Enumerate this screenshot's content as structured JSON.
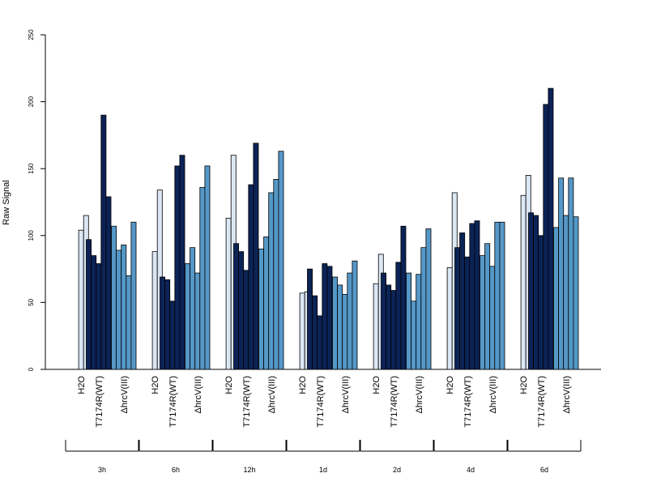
{
  "chart_data": {
    "type": "bar",
    "title": "",
    "xlabel": "",
    "ylabel": "Raw Signal",
    "ylim": [
      0,
      250
    ],
    "yticks": [
      0,
      50,
      100,
      150,
      200,
      250
    ],
    "grid": false,
    "legend": "none",
    "colors": {
      "H2O": "#dbe7f4",
      "T7174R(WT)": "#0c2356",
      "ΔhrcV(III)": "#5598c8",
      "stroke": "#000000",
      "axis": "#000000"
    },
    "treatments": [
      "H2O",
      "T7174R(WT)",
      "ΔhrcV(III)"
    ],
    "groups": [
      {
        "label": "3h",
        "bars": {
          "H2O": [
            null,
            104,
            115
          ],
          "T7174R(WT)": [
            97,
            85,
            79,
            190,
            129
          ],
          "ΔhrcV(III)": [
            107,
            89,
            93,
            70,
            110
          ]
        }
      },
      {
        "label": "6h",
        "bars": {
          "H2O": [
            null,
            88,
            134
          ],
          "T7174R(WT)": [
            69,
            67,
            51,
            152,
            160
          ],
          "ΔhrcV(III)": [
            79,
            91,
            72,
            136,
            152
          ]
        }
      },
      {
        "label": "12h",
        "bars": {
          "H2O": [
            null,
            113,
            160
          ],
          "T7174R(WT)": [
            94,
            88,
            74,
            138,
            169
          ],
          "ΔhrcV(III)": [
            90,
            99,
            132,
            142,
            163
          ]
        }
      },
      {
        "label": "1d",
        "bars": {
          "H2O": [
            null,
            57,
            58
          ],
          "T7174R(WT)": [
            75,
            55,
            40,
            79,
            77
          ],
          "ΔhrcV(III)": [
            69,
            63,
            56,
            72,
            81
          ]
        }
      },
      {
        "label": "2d",
        "bars": {
          "H2O": [
            null,
            64,
            86
          ],
          "T7174R(WT)": [
            72,
            63,
            59,
            80,
            107
          ],
          "ΔhrcV(III)": [
            72,
            51,
            71,
            91,
            105
          ]
        }
      },
      {
        "label": "4d",
        "bars": {
          "H2O": [
            null,
            76,
            132
          ],
          "T7174R(WT)": [
            91,
            102,
            84,
            109,
            111
          ],
          "ΔhrcV(III)": [
            85,
            94,
            77,
            110,
            110
          ]
        }
      },
      {
        "label": "6d",
        "bars": {
          "H2O": [
            null,
            130,
            145
          ],
          "T7174R(WT)": [
            117,
            115,
            100,
            198,
            210
          ],
          "ΔhrcV(III)": [
            106,
            143,
            115,
            143,
            114
          ]
        }
      }
    ]
  }
}
